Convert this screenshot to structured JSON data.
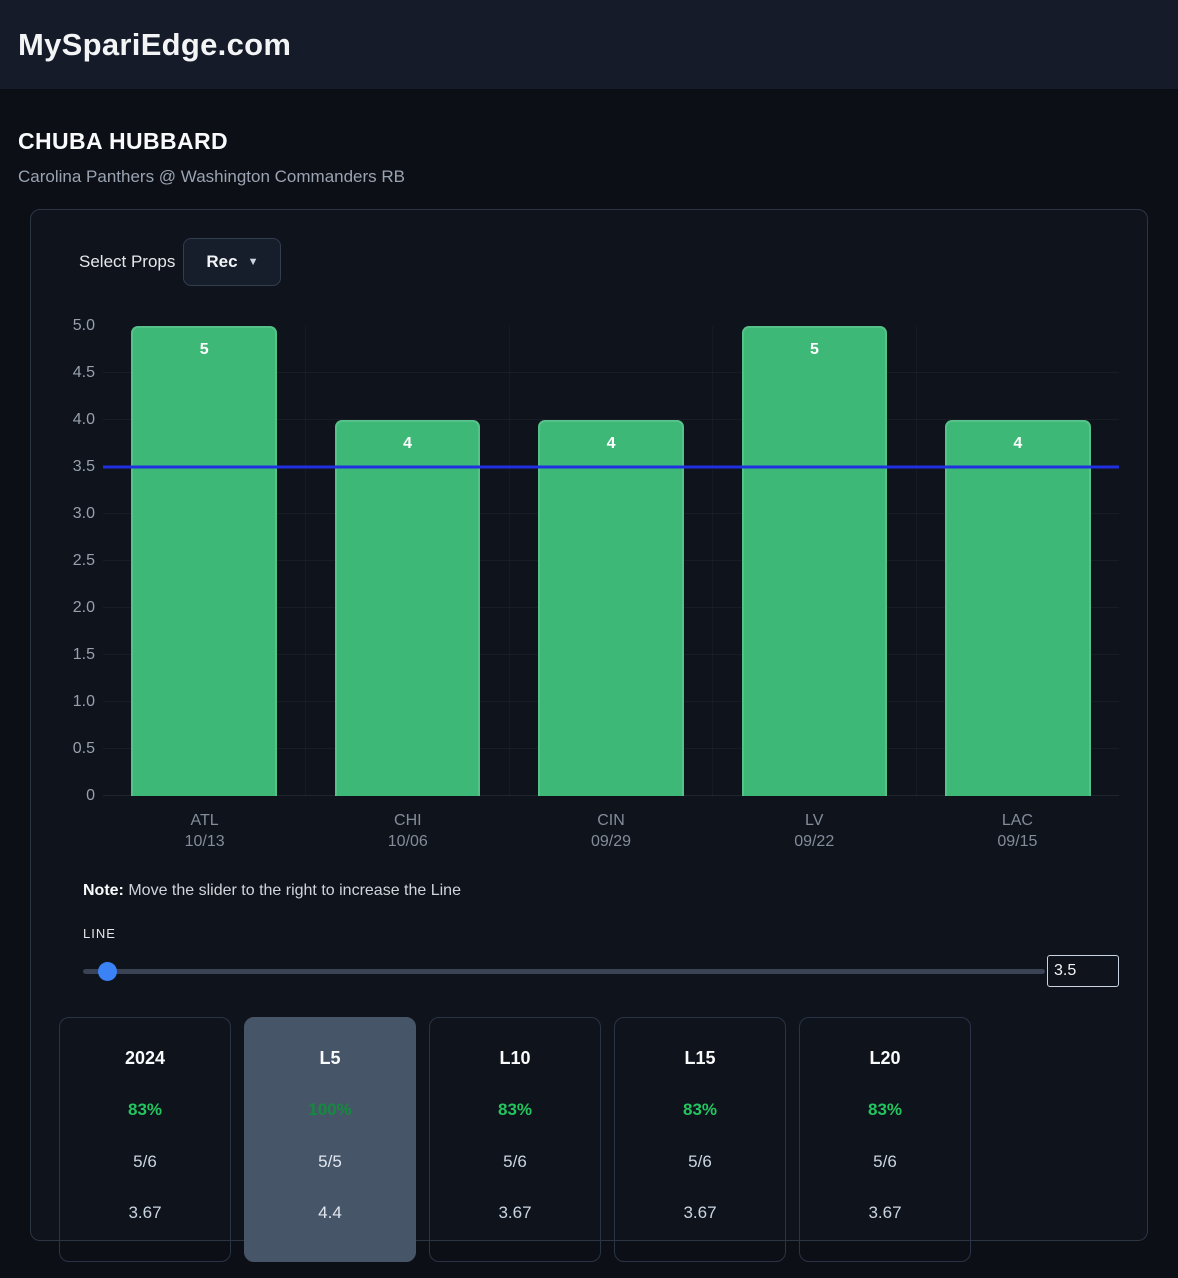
{
  "header": {
    "title": "MySpariEdge.com"
  },
  "player": {
    "name": "CHUBA HUBBARD",
    "subtitle": "Carolina Panthers @ Washington Commanders RB"
  },
  "props": {
    "label": "Select Props",
    "selected": "Rec"
  },
  "chart_data": {
    "type": "bar",
    "categories": [
      "ATL",
      "CHI",
      "CIN",
      "LV",
      "LAC"
    ],
    "dates": [
      "10/13",
      "10/06",
      "09/29",
      "09/22",
      "09/15"
    ],
    "values": [
      5,
      4,
      4,
      5,
      4
    ],
    "line_value": 3.5,
    "ylim": [
      0,
      5
    ],
    "ytick_labels": [
      "0",
      "0.5",
      "1.0",
      "1.5",
      "2.0",
      "2.5",
      "3.0",
      "3.5",
      "4.0",
      "4.5",
      "5.0"
    ],
    "title": "",
    "xlabel": "",
    "ylabel": "",
    "legend": "none",
    "grid": "faint-horizontal"
  },
  "colors": {
    "green_bar": "#3eb877",
    "green_bar_edge": "#57c18a",
    "line_blue": "#2030e0",
    "pct_green": "#22c55e",
    "pct_green_active": "#158a3e",
    "slider_thumb": "#3b82f6"
  },
  "note": {
    "bold": "Note:",
    "text": " Move the slider to the right to increase the Line"
  },
  "slider": {
    "label": "LINE",
    "value": "3.5"
  },
  "stat_cards": [
    {
      "label": "2024",
      "pct": "83%",
      "ratio": "5/6",
      "avg": "3.67",
      "active": false
    },
    {
      "label": "L5",
      "pct": "100%",
      "ratio": "5/5",
      "avg": "4.4",
      "active": true
    },
    {
      "label": "L10",
      "pct": "83%",
      "ratio": "5/6",
      "avg": "3.67",
      "active": false
    },
    {
      "label": "L15",
      "pct": "83%",
      "ratio": "5/6",
      "avg": "3.67",
      "active": false
    },
    {
      "label": "L20",
      "pct": "83%",
      "ratio": "5/6",
      "avg": "3.67",
      "active": false
    }
  ]
}
